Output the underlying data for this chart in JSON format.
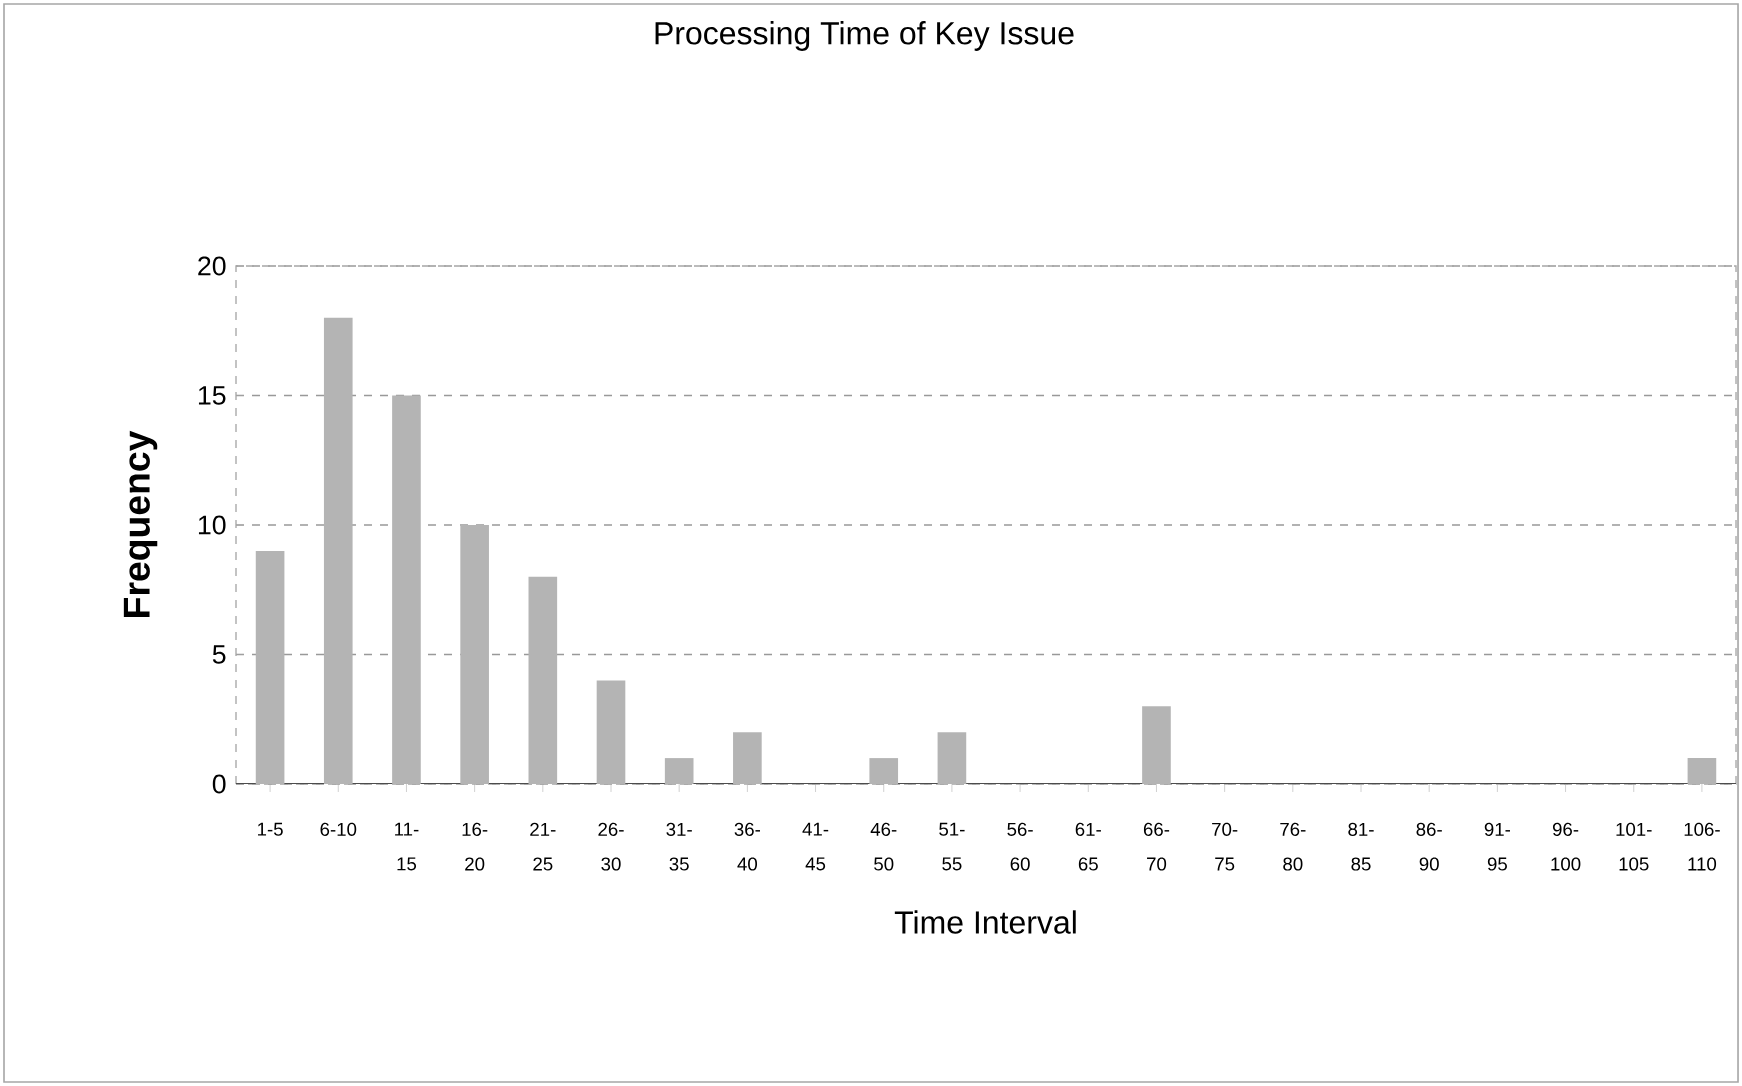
{
  "chart_data": {
    "type": "bar",
    "title": "Processing Time of Key Issue",
    "xlabel": "Time Interval",
    "ylabel": "Frequency",
    "categories": [
      "1-5",
      "6-10",
      "11-15",
      "16-20",
      "21-25",
      "26-30",
      "31-35",
      "36-40",
      "41-45",
      "46-50",
      "51-55",
      "56-60",
      "61-65",
      "66-70",
      "70-75",
      "76-80",
      "81-85",
      "86-90",
      "91-95",
      "96-100",
      "101-105",
      "106-110"
    ],
    "values": [
      9,
      18,
      15,
      10,
      8,
      4,
      1,
      2,
      0,
      1,
      2,
      0,
      0,
      3,
      0,
      0,
      0,
      0,
      0,
      0,
      0,
      1
    ],
    "color": "#b4b4b4",
    "ylim": [
      0,
      20
    ],
    "yticks": [
      0,
      5,
      10,
      15,
      20
    ],
    "grid": "y"
  }
}
